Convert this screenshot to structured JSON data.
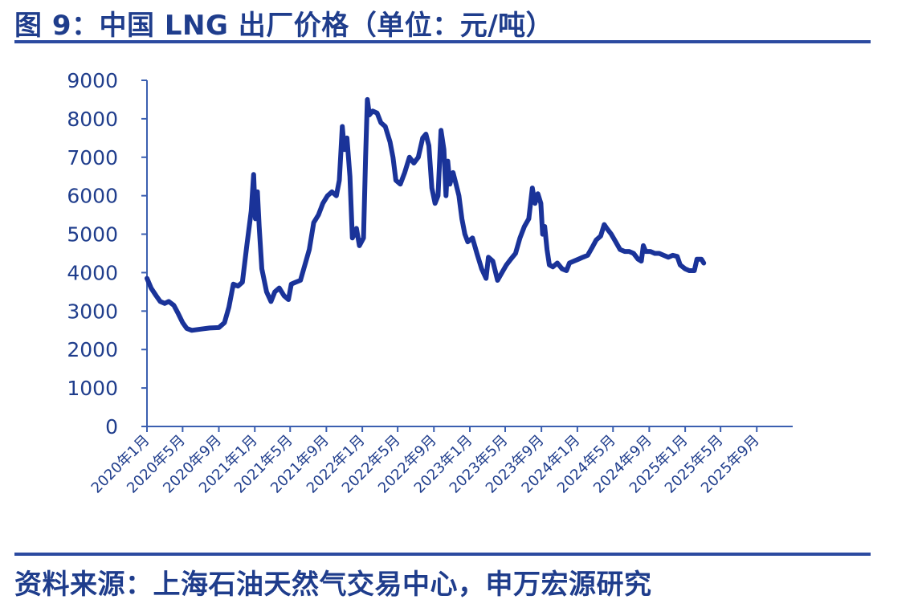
{
  "header": {
    "title": "图 9：中国 LNG 出厂价格（单位：元/吨）"
  },
  "footer": {
    "source": "资料来源：上海石油天然气交易中心，申万宏源研究"
  },
  "chart_data": {
    "type": "line",
    "title": "图 9：中国 LNG 出厂价格（单位：元/吨）",
    "ylim": [
      0,
      9000
    ],
    "y_ticks": [
      "0",
      "1000",
      "2000",
      "3000",
      "4000",
      "5000",
      "6000",
      "7000",
      "8000",
      "9000"
    ],
    "x_range": [
      "2020-01",
      "2026-01"
    ],
    "x_ticks": [
      "2020年1月",
      "2020年5月",
      "2020年9月",
      "2021年1月",
      "2021年5月",
      "2021年9月",
      "2022年1月",
      "2022年5月",
      "2022年9月",
      "2023年1月",
      "2023年5月",
      "2023年9月",
      "2024年1月",
      "2024年5月",
      "2024年9月",
      "2025年1月",
      "2025年5月",
      "2025年9月"
    ],
    "grid": false,
    "color": "#1a3399",
    "series": [
      {
        "values": [
          [
            "2020-01-01",
            3850
          ],
          [
            "2020-01-15",
            3600
          ],
          [
            "2020-02-01",
            3400
          ],
          [
            "2020-02-15",
            3250
          ],
          [
            "2020-03-01",
            3200
          ],
          [
            "2020-03-15",
            3250
          ],
          [
            "2020-04-01",
            3150
          ],
          [
            "2020-04-15",
            2950
          ],
          [
            "2020-05-01",
            2700
          ],
          [
            "2020-05-15",
            2550
          ],
          [
            "2020-06-01",
            2500
          ],
          [
            "2020-07-01",
            2530
          ],
          [
            "2020-08-01",
            2560
          ],
          [
            "2020-09-01",
            2570
          ],
          [
            "2020-09-20",
            2700
          ],
          [
            "2020-10-05",
            3100
          ],
          [
            "2020-10-20",
            3700
          ],
          [
            "2020-11-05",
            3650
          ],
          [
            "2020-11-20",
            3750
          ],
          [
            "2020-12-05",
            4700
          ],
          [
            "2020-12-20",
            5600
          ],
          [
            "2020-12-28",
            6550
          ],
          [
            "2021-01-03",
            5400
          ],
          [
            "2021-01-10",
            6100
          ],
          [
            "2021-01-16",
            5200
          ],
          [
            "2021-01-25",
            4100
          ],
          [
            "2021-02-10",
            3500
          ],
          [
            "2021-02-25",
            3250
          ],
          [
            "2021-03-10",
            3500
          ],
          [
            "2021-03-25",
            3600
          ],
          [
            "2021-04-10",
            3400
          ],
          [
            "2021-04-25",
            3300
          ],
          [
            "2021-05-05",
            3700
          ],
          [
            "2021-05-20",
            3750
          ],
          [
            "2021-06-05",
            3800
          ],
          [
            "2021-06-20",
            4200
          ],
          [
            "2021-07-05",
            4600
          ],
          [
            "2021-07-20",
            5300
          ],
          [
            "2021-08-05",
            5500
          ],
          [
            "2021-08-20",
            5800
          ],
          [
            "2021-09-05",
            6000
          ],
          [
            "2021-09-20",
            6100
          ],
          [
            "2021-10-05",
            6000
          ],
          [
            "2021-10-15",
            6400
          ],
          [
            "2021-10-25",
            7800
          ],
          [
            "2021-11-01",
            7200
          ],
          [
            "2021-11-10",
            7500
          ],
          [
            "2021-11-20",
            6500
          ],
          [
            "2021-11-28",
            4900
          ],
          [
            "2021-12-05",
            5000
          ],
          [
            "2021-12-12",
            5150
          ],
          [
            "2021-12-22",
            4700
          ],
          [
            "2022-01-05",
            4900
          ],
          [
            "2022-01-12",
            7000
          ],
          [
            "2022-01-18",
            8500
          ],
          [
            "2022-01-25",
            8100
          ],
          [
            "2022-02-05",
            8200
          ],
          [
            "2022-02-20",
            8150
          ],
          [
            "2022-03-05",
            7900
          ],
          [
            "2022-03-20",
            7800
          ],
          [
            "2022-04-05",
            7400
          ],
          [
            "2022-04-15",
            7000
          ],
          [
            "2022-04-25",
            6400
          ],
          [
            "2022-05-10",
            6300
          ],
          [
            "2022-05-25",
            6600
          ],
          [
            "2022-06-10",
            7000
          ],
          [
            "2022-06-25",
            6850
          ],
          [
            "2022-07-10",
            7000
          ],
          [
            "2022-07-25",
            7500
          ],
          [
            "2022-08-05",
            7600
          ],
          [
            "2022-08-15",
            7300
          ],
          [
            "2022-08-25",
            6200
          ],
          [
            "2022-09-05",
            5800
          ],
          [
            "2022-09-15",
            6000
          ],
          [
            "2022-09-25",
            7700
          ],
          [
            "2022-10-05",
            7200
          ],
          [
            "2022-10-12",
            6000
          ],
          [
            "2022-10-18",
            6900
          ],
          [
            "2022-10-25",
            6300
          ],
          [
            "2022-11-05",
            6600
          ],
          [
            "2022-11-15",
            6300
          ],
          [
            "2022-11-25",
            6000
          ],
          [
            "2022-12-05",
            5400
          ],
          [
            "2022-12-15",
            5000
          ],
          [
            "2022-12-25",
            4800
          ],
          [
            "2023-01-10",
            4900
          ],
          [
            "2023-01-25",
            4500
          ],
          [
            "2023-02-10",
            4100
          ],
          [
            "2023-02-25",
            3850
          ],
          [
            "2023-03-05",
            4400
          ],
          [
            "2023-03-20",
            4300
          ],
          [
            "2023-04-05",
            3800
          ],
          [
            "2023-04-20",
            4000
          ],
          [
            "2023-05-05",
            4200
          ],
          [
            "2023-05-20",
            4350
          ],
          [
            "2023-06-05",
            4500
          ],
          [
            "2023-06-20",
            4900
          ],
          [
            "2023-07-05",
            5200
          ],
          [
            "2023-07-20",
            5400
          ],
          [
            "2023-08-01",
            6200
          ],
          [
            "2023-08-10",
            5800
          ],
          [
            "2023-08-20",
            6050
          ],
          [
            "2023-08-30",
            5800
          ],
          [
            "2023-09-05",
            5000
          ],
          [
            "2023-09-12",
            5200
          ],
          [
            "2023-09-20",
            4600
          ],
          [
            "2023-09-28",
            4200
          ],
          [
            "2023-10-10",
            4150
          ],
          [
            "2023-10-25",
            4250
          ],
          [
            "2023-11-10",
            4100
          ],
          [
            "2023-11-25",
            4050
          ],
          [
            "2023-12-05",
            4250
          ],
          [
            "2023-12-20",
            4300
          ],
          [
            "2024-01-05",
            4350
          ],
          [
            "2024-01-20",
            4400
          ],
          [
            "2024-02-05",
            4450
          ],
          [
            "2024-02-20",
            4650
          ],
          [
            "2024-03-05",
            4850
          ],
          [
            "2024-03-20",
            4950
          ],
          [
            "2024-04-01",
            5250
          ],
          [
            "2024-04-10",
            5150
          ],
          [
            "2024-04-25",
            5000
          ],
          [
            "2024-05-10",
            4800
          ],
          [
            "2024-05-25",
            4600
          ],
          [
            "2024-06-10",
            4550
          ],
          [
            "2024-06-25",
            4550
          ],
          [
            "2024-07-10",
            4500
          ],
          [
            "2024-07-25",
            4350
          ],
          [
            "2024-08-05",
            4300
          ],
          [
            "2024-08-12",
            4700
          ],
          [
            "2024-08-20",
            4550
          ],
          [
            "2024-09-05",
            4550
          ],
          [
            "2024-09-20",
            4500
          ],
          [
            "2024-10-05",
            4500
          ],
          [
            "2024-10-20",
            4450
          ],
          [
            "2024-11-05",
            4400
          ],
          [
            "2024-11-20",
            4450
          ],
          [
            "2024-12-05",
            4420
          ],
          [
            "2024-12-15",
            4200
          ],
          [
            "2025-01-01",
            4100
          ],
          [
            "2025-01-15",
            4050
          ],
          [
            "2025-02-01",
            4050
          ],
          [
            "2025-02-10",
            4350
          ],
          [
            "2025-02-25",
            4350
          ],
          [
            "2025-03-05",
            4250
          ]
        ]
      }
    ]
  }
}
